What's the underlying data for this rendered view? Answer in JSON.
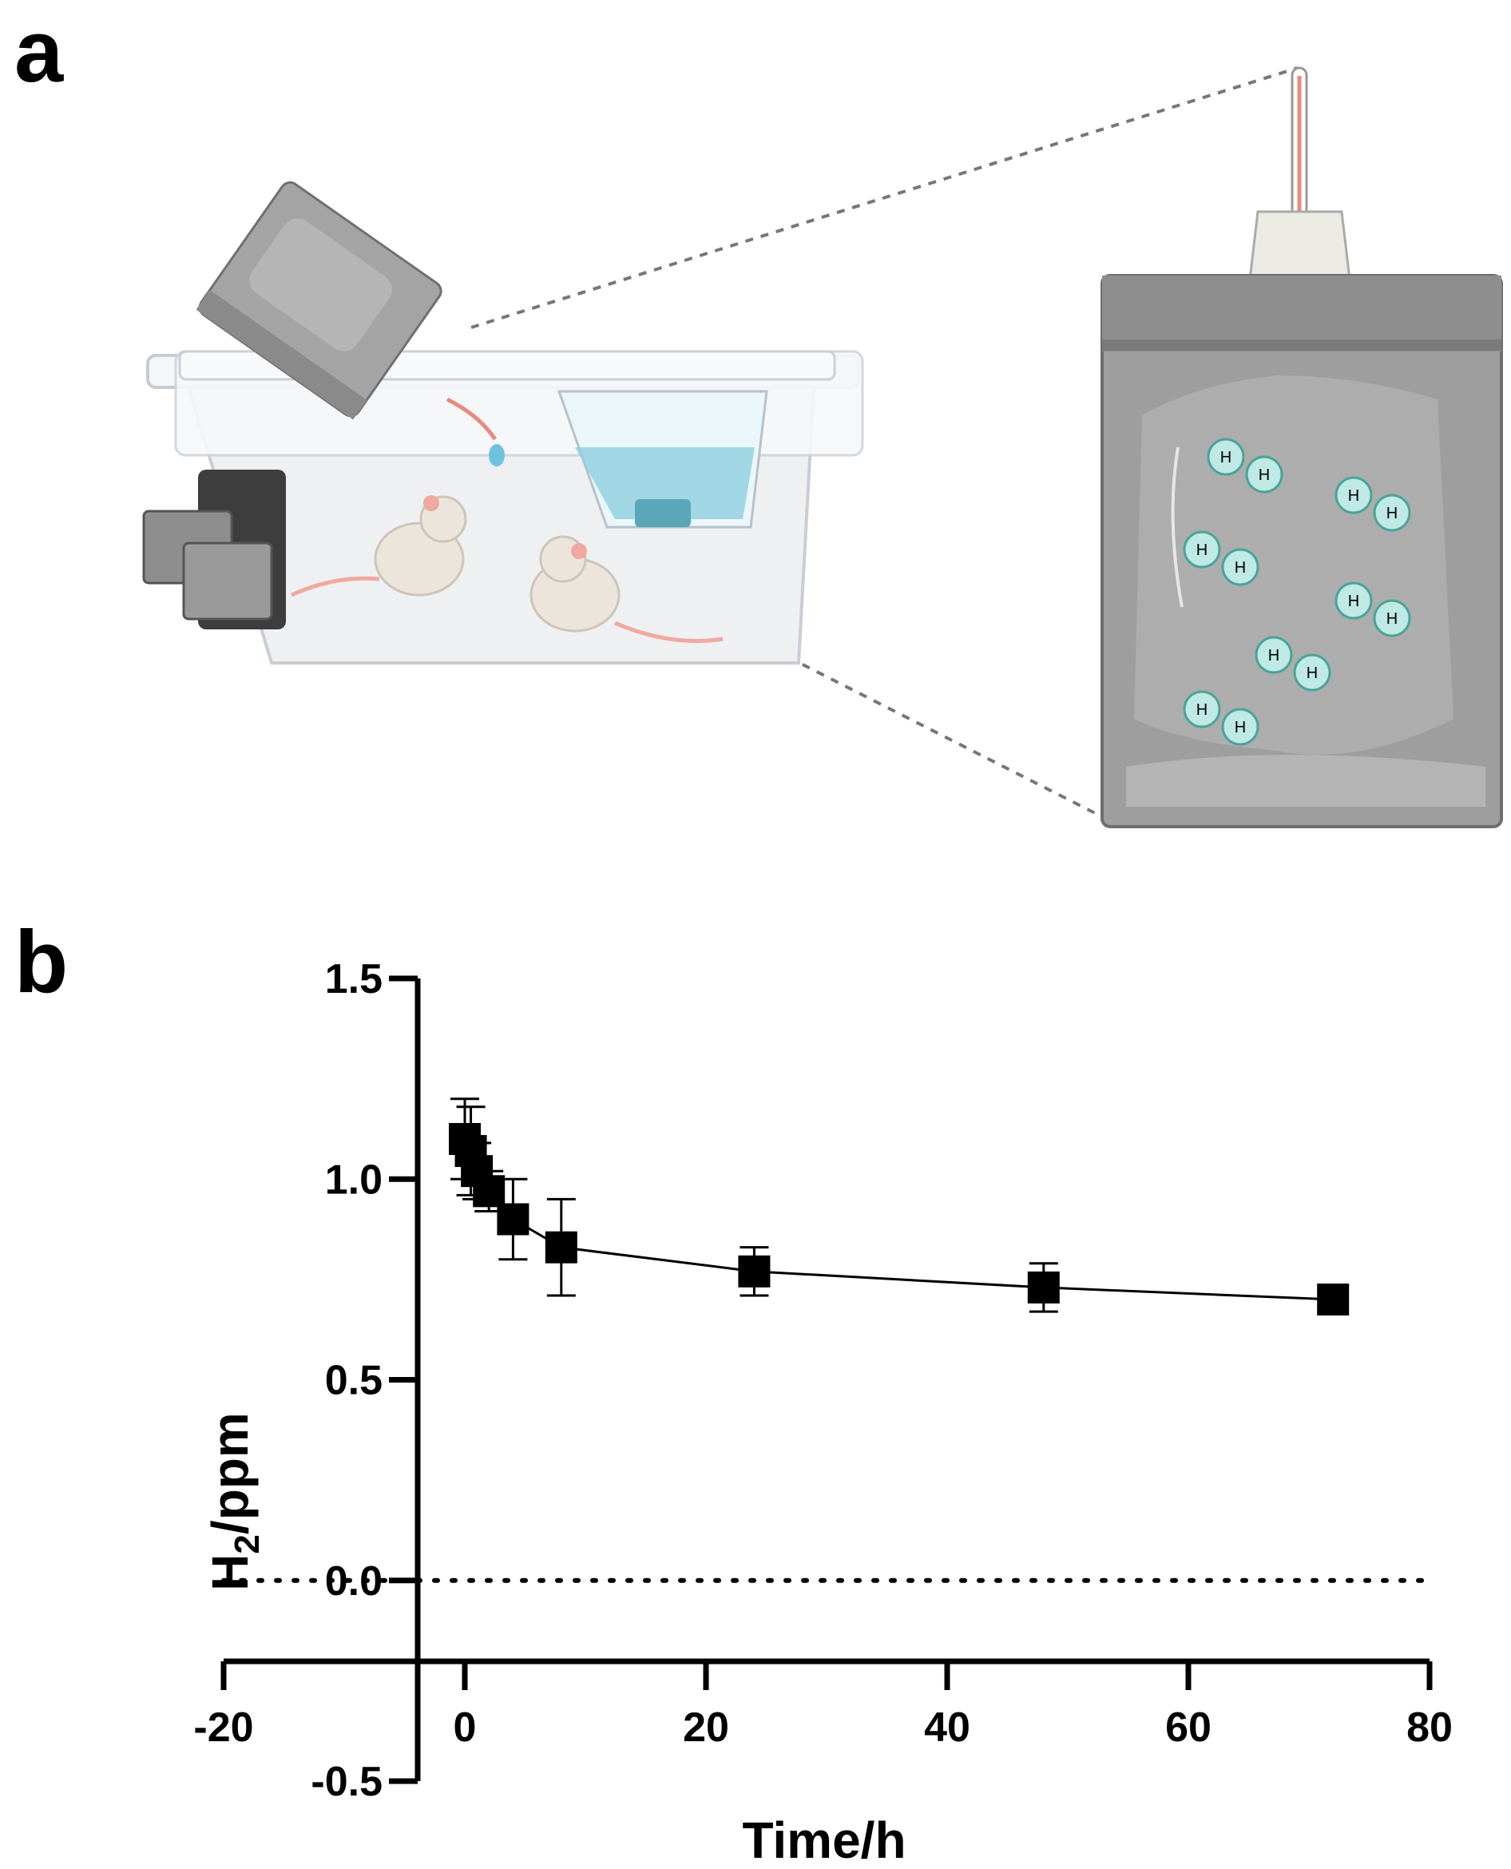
{
  "panels": {
    "a_label": "a",
    "b_label": "b"
  },
  "illustration": {
    "molecule_label": "H",
    "colors": {
      "bag": "#9e9e9e",
      "bag_dark": "#7a7a7a",
      "cage": "#eef0f2",
      "water": "#8fd0e0",
      "molecule": "#bfe9e4",
      "molecule_stroke": "#4aa39a",
      "mouse": "#ece5dc",
      "mouse_pink": "#f0a8a0",
      "tube": "#e88a80"
    }
  },
  "chart_data": {
    "type": "line",
    "xlabel": "Time/h",
    "ylabel_main": "H",
    "ylabel_sub": "2",
    "ylabel_rest": "/ppm",
    "xlim": [
      -20,
      80
    ],
    "ylim": [
      -0.5,
      1.5
    ],
    "x_ticks": [
      -20,
      0,
      20,
      40,
      60,
      80
    ],
    "y_ticks": [
      -0.5,
      0.0,
      0.5,
      1.0,
      1.5
    ],
    "x_tick_labels": [
      "-20",
      "0",
      "20",
      "40",
      "60",
      "80"
    ],
    "y_tick_labels": [
      "-0.5",
      "0.0",
      "0.5",
      "1.0",
      "1.5"
    ],
    "reference_line_y": 0.0,
    "series": [
      {
        "marker": "square",
        "color": "#000000",
        "x": [
          0,
          0.5,
          1,
          2,
          4,
          8,
          24,
          48,
          72
        ],
        "y": [
          1.1,
          1.07,
          1.02,
          0.97,
          0.9,
          0.83,
          0.77,
          0.73,
          0.7
        ],
        "error": [
          0.1,
          0.11,
          0.07,
          0.05,
          0.1,
          0.12,
          0.06,
          0.06,
          0.02
        ]
      }
    ],
    "grid": false
  }
}
